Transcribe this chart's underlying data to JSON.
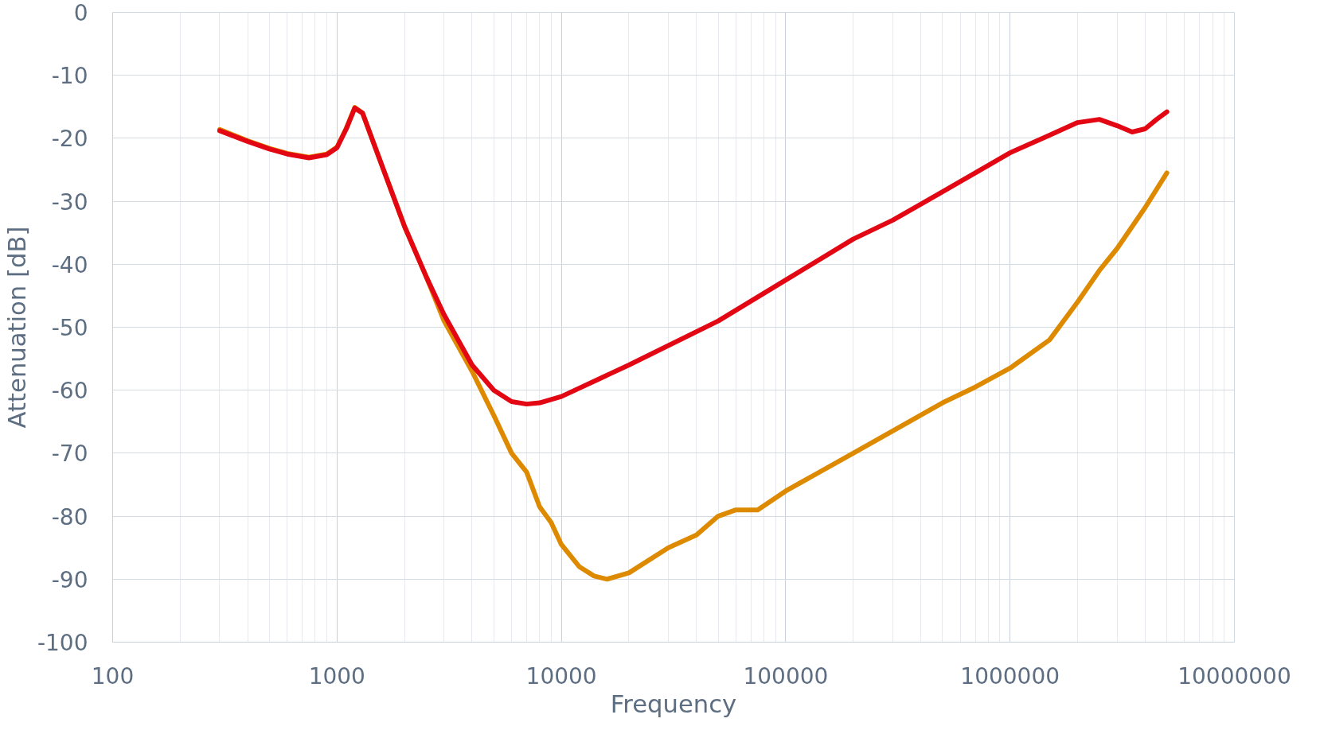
{
  "chart_data": {
    "type": "line",
    "xlabel": "Frequency",
    "ylabel": "Attenuation [dB]",
    "log": "x",
    "grid": true,
    "marker": "none",
    "line_style": "solid",
    "xlim": [
      100,
      10000000
    ],
    "xticks": [
      100,
      1000,
      10000,
      100000,
      1000000,
      10000000
    ],
    "ylim": [
      -100,
      0
    ],
    "yticks": [
      -100,
      -90,
      -80,
      -70,
      -60,
      -50,
      -40,
      -30,
      -20,
      -10,
      0
    ],
    "series": [
      {
        "color": "#dd8a00",
        "x": [
          300,
          400,
          500,
          600,
          750,
          900,
          1000,
          1100,
          1200,
          1300,
          1500,
          2000,
          2500,
          3000,
          4000,
          5000,
          6000,
          7000,
          8000,
          9000,
          10000,
          12000,
          14000,
          16000,
          20000,
          30000,
          40000,
          50000,
          60000,
          75000,
          100000,
          200000,
          500000,
          700000,
          1000000,
          1500000,
          2000000,
          2500000,
          3000000,
          4000000,
          5000000
        ],
        "values": [
          -18.6,
          -20.4,
          -21.6,
          -22.4,
          -23.0,
          -22.5,
          -21.4,
          -18.4,
          -15.1,
          -16,
          -22,
          -34,
          -42,
          -49,
          -57,
          -64,
          -70,
          -73,
          -78.5,
          -81,
          -84.5,
          -88,
          -89.5,
          -90,
          -89,
          -85,
          -83,
          -80,
          -79,
          -79,
          -76,
          -70,
          -62,
          -59.5,
          -56.5,
          -52,
          -46,
          -41,
          -37.5,
          -31,
          -25.5
        ]
      },
      {
        "color": "#e30613",
        "x": [
          300,
          400,
          500,
          600,
          750,
          900,
          1000,
          1100,
          1200,
          1300,
          1500,
          2000,
          2500,
          3000,
          4000,
          5000,
          6000,
          7000,
          8000,
          10000,
          20000,
          50000,
          100000,
          200000,
          300000,
          500000,
          700000,
          1000000,
          1500000,
          2000000,
          2500000,
          3000000,
          3500000,
          4000000,
          4500000,
          5000000
        ],
        "values": [
          -18.8,
          -20.5,
          -21.7,
          -22.5,
          -23.1,
          -22.6,
          -21.5,
          -18.5,
          -15.2,
          -16,
          -22,
          -34,
          -42,
          -48,
          -56,
          -60,
          -61.8,
          -62.2,
          -62,
          -61,
          -56,
          -49,
          -42.5,
          -36,
          -33,
          -28.5,
          -25.5,
          -22.3,
          -19.5,
          -17.5,
          -17,
          -18,
          -19,
          -18.5,
          -17,
          -15.8
        ]
      }
    ]
  }
}
